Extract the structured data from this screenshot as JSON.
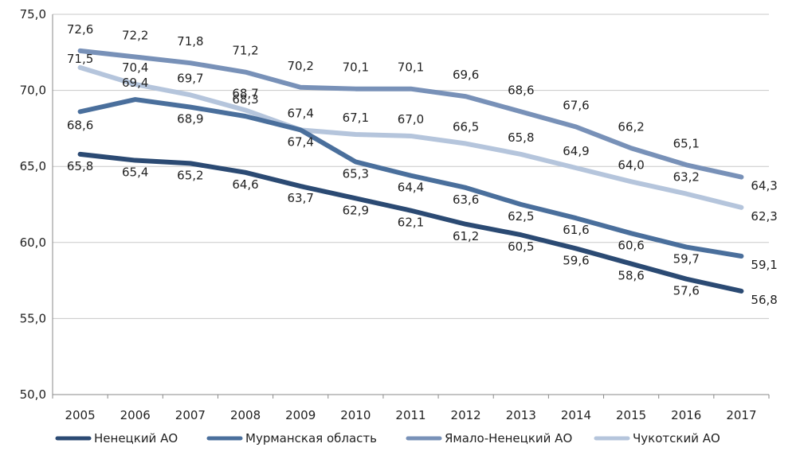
{
  "chart_data": {
    "type": "line",
    "title": "",
    "xlabel": "",
    "ylabel": "",
    "ylim": [
      50,
      75
    ],
    "y_ticks": [
      "50,0",
      "55,0",
      "60,0",
      "65,0",
      "70,0",
      "75,0"
    ],
    "y_tick_values": [
      50,
      55,
      60,
      65,
      70,
      75
    ],
    "grid": true,
    "legend_position": "bottom",
    "categories": [
      "2005",
      "2006",
      "2007",
      "2008",
      "2009",
      "2010",
      "2011",
      "2012",
      "2013",
      "2014",
      "2015",
      "2016",
      "2017"
    ],
    "series": [
      {
        "name": "Ненецкий АО",
        "color": "#2b4a73",
        "values": [
          65.8,
          65.4,
          65.2,
          64.6,
          63.7,
          62.9,
          62.1,
          61.2,
          60.5,
          59.6,
          58.6,
          57.6,
          56.8
        ],
        "labels": [
          "65,8",
          "65,4",
          "65,2",
          "64,6",
          "63,7",
          "62,9",
          "62,1",
          "61,2",
          "60,5",
          "59,6",
          "58,6",
          "57,6",
          "56,8"
        ]
      },
      {
        "name": "Мурманская область",
        "color": "#4a6f9c",
        "values": [
          68.6,
          69.4,
          68.9,
          68.3,
          67.4,
          65.3,
          64.4,
          63.6,
          62.5,
          61.6,
          60.6,
          59.7,
          59.1
        ],
        "labels": [
          "68,6",
          "69,4",
          "68,9",
          "68,3",
          "67,4",
          "65,3",
          "64,4",
          "63,6",
          "62,5",
          "61,6",
          "60,6",
          "59,7",
          "59,1"
        ]
      },
      {
        "name": "Ямало-Ненецкий АО",
        "color": "#7891b8",
        "values": [
          72.6,
          72.2,
          71.8,
          71.2,
          70.2,
          70.1,
          70.1,
          69.6,
          68.6,
          67.6,
          66.2,
          65.1,
          64.3
        ],
        "labels": [
          "72,6",
          "72,2",
          "71,8",
          "71,2",
          "70,2",
          "70,1",
          "70,1",
          "69,6",
          "68,6",
          "67,6",
          "66,2",
          "65,1",
          "64,3"
        ]
      },
      {
        "name": "Чукотский АО",
        "color": "#b5c5dc",
        "values": [
          71.5,
          70.4,
          69.7,
          68.7,
          67.4,
          67.1,
          67.0,
          66.5,
          65.8,
          64.9,
          64.0,
          63.2,
          62.3
        ],
        "labels": [
          "71,5",
          "70,4",
          "69,7",
          "68,7",
          "67,4",
          "67,1",
          "67,0",
          "66,5",
          "65,8",
          "64,9",
          "64,0",
          "63,2",
          "62,3"
        ]
      }
    ]
  }
}
